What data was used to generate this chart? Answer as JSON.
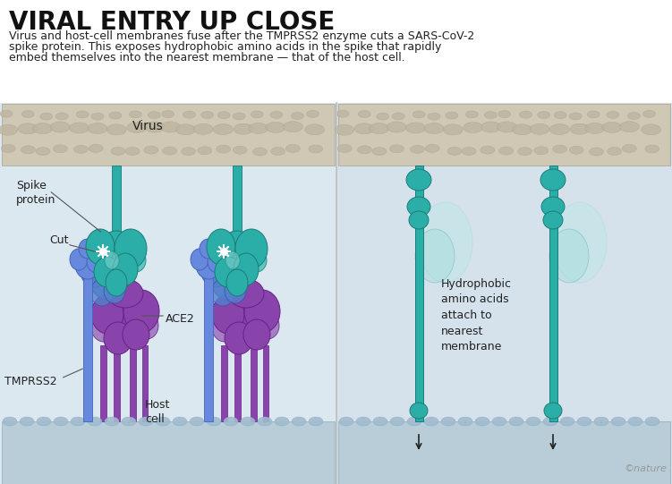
{
  "title": "VIRAL ENTRY UP CLOSE",
  "subtitle_line1": "Virus and host-cell membranes fuse after the TMPRSS2 enzyme cuts a SARS-CoV-2",
  "subtitle_line2": "spike protein. This exposes hydrophobic amino acids in the spike that rapidly",
  "subtitle_line3": "embed themselves into the nearest membrane — that of the host cell.",
  "bg_color": "#ffffff",
  "left_panel_bg": "#dce8f0",
  "right_panel_bg": "#d5e2ec",
  "virus_fill": "#cfc8b5",
  "virus_bump": "#bdb59f",
  "virus_edge": "#a8a090",
  "host_fill": "#b8cdd8",
  "host_bump": "#a0bccf",
  "host_edge": "#90aabf",
  "teal_main": "#2bada8",
  "teal_dark": "#1a7d78",
  "teal_mid": "#40c0bb",
  "teal_light": "#90d8d5",
  "teal_pale": "#b8e8e5",
  "blue_ace2": "#5580cc",
  "blue_ace2_dark": "#3355aa",
  "blue_tmprss": "#6688dd",
  "blue_tmprss_dark": "#4466bb",
  "purple_main": "#8844aa",
  "purple_dark": "#662288",
  "purple_mid": "#9966bb",
  "label_color": "#222222",
  "divider_color": "#bbbbbb",
  "arrow_color": "#222222",
  "nature_color": "#999999",
  "virus_label": "Virus",
  "spike_label": "Spike\nprotein",
  "cut_label": "Cut",
  "ace2_label": "ACE2",
  "tmprss2_label": "TMPRSS2",
  "host_label": "Host\ncell",
  "hydro_label": "Hydrophobic\namino acids\nattach to\nnearest\nmembrane",
  "nature_credit": "©nature",
  "title_size": 20,
  "body_size": 9,
  "label_size": 9
}
